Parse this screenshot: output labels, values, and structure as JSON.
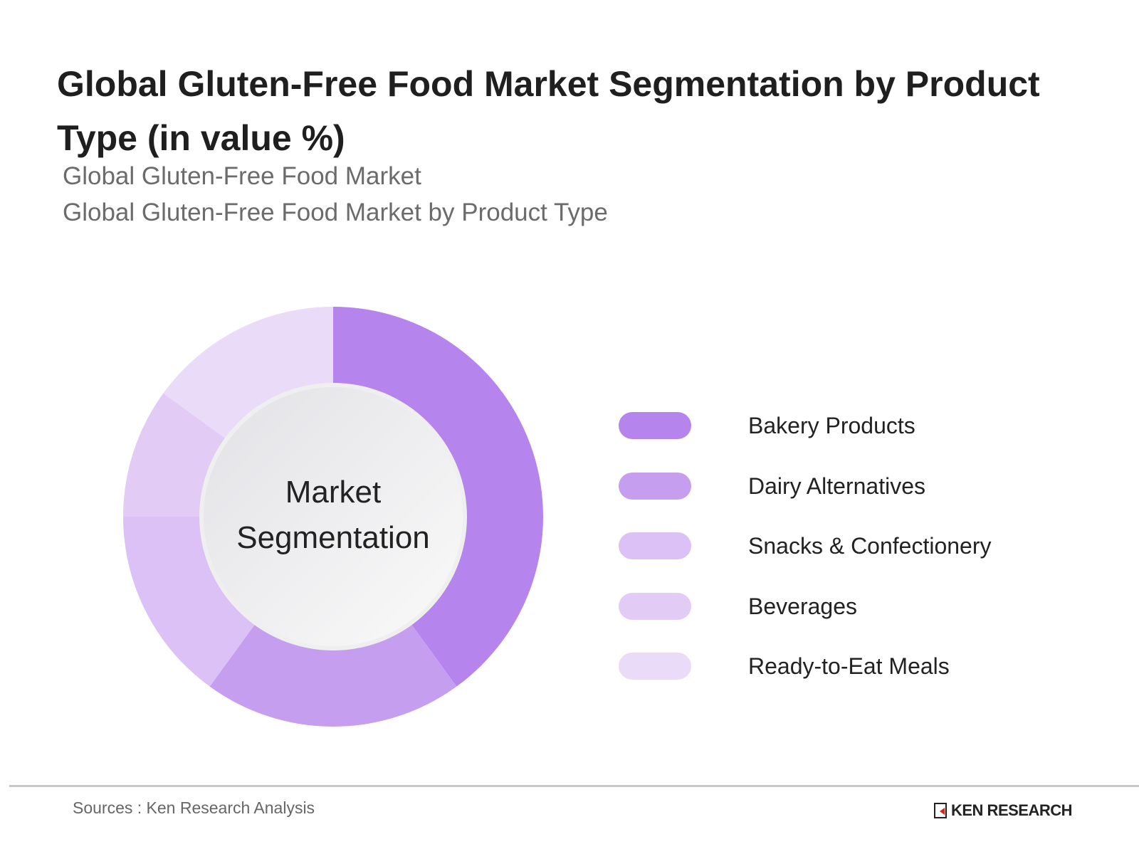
{
  "title": "Global Gluten-Free Food Market Segmentation by Product Type (in value %)",
  "subtitle_1": "Global Gluten-Free Food Market",
  "subtitle_2": "Global Gluten-Free Food Market by Product Type",
  "chart_data": {
    "type": "pie",
    "variant": "donut",
    "center_label": [
      "Market",
      "Segmentation"
    ],
    "categories": [
      "Bakery Products",
      "Dairy Alternatives",
      "Snacks & Confectionery",
      "Beverages",
      "Ready-to-Eat Meals"
    ],
    "values": [
      40,
      20,
      15,
      10,
      15
    ],
    "colors": [
      "#b584ec",
      "#c69ef0",
      "#dbc1f5",
      "#e2ccf6",
      "#eadbf9"
    ],
    "legend_placement": "right"
  },
  "footer": {
    "source": "Sources : Ken Research Analysis",
    "logo_text": "KEN RESEARCH"
  }
}
